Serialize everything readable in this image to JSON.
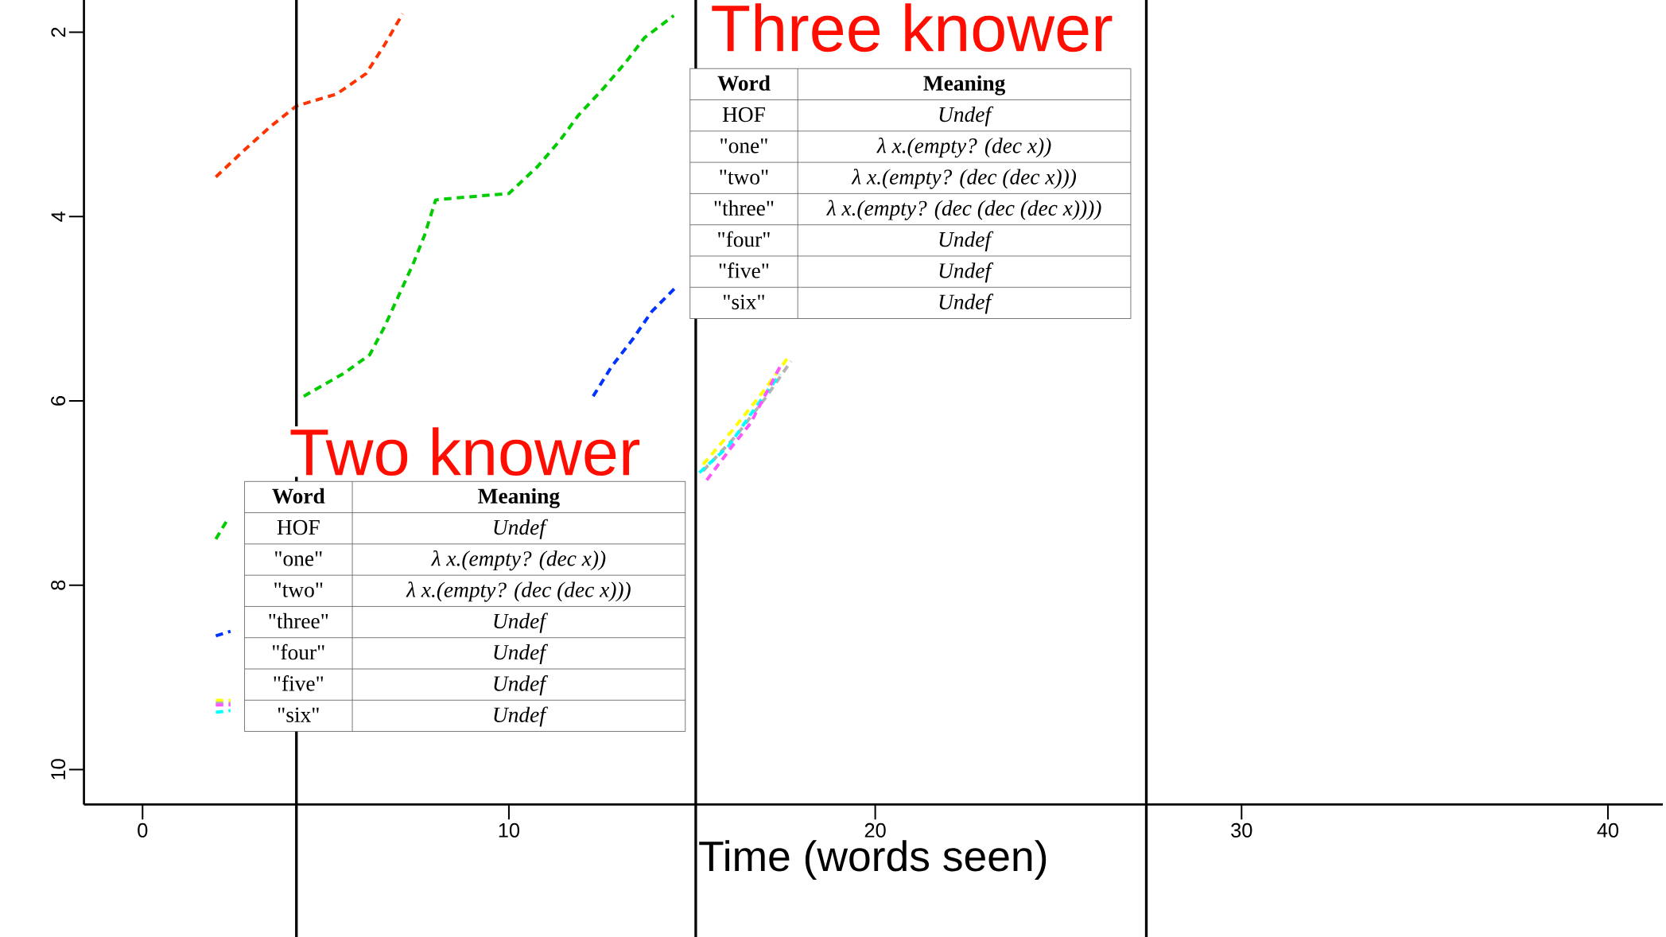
{
  "chart_data": {
    "type": "line",
    "xlabel": "Time (words seen)",
    "xlim": [
      -1.6,
      41.5
    ],
    "xticks": [
      0,
      10,
      20,
      30,
      40
    ],
    "ylim": [
      10.38,
      1.65
    ],
    "yticks": [
      2,
      4,
      6,
      8,
      10
    ],
    "marker": "none",
    "line_style": "dashed",
    "series": [
      {
        "color": "#ff3300",
        "x": [
          2.0,
          2.8,
          3.5,
          4.2,
          5.3,
          6.1,
          6.6,
          7.1
        ],
        "values": [
          3.57,
          3.27,
          3.02,
          2.8,
          2.67,
          2.45,
          2.14,
          1.8
        ]
      },
      {
        "color": "#00cc00",
        "x": [
          2.0,
          2.3,
          3.0,
          4.4,
          5.5,
          6.2,
          6.6,
          7.0,
          7.4,
          7.7,
          8.0,
          8.5,
          10.0,
          10.8,
          11.4,
          11.9,
          12.6,
          13.2,
          13.7,
          14.5
        ],
        "values": [
          7.5,
          7.3,
          null,
          5.95,
          5.7,
          5.5,
          5.2,
          4.85,
          4.5,
          4.2,
          3.82,
          3.8,
          3.75,
          3.45,
          3.17,
          2.9,
          2.6,
          2.32,
          2.06,
          1.82
        ]
      },
      {
        "color": "#0033ff",
        "x": [
          2.0,
          2.4,
          3.0,
          12.3,
          12.8,
          13.4,
          13.9,
          14.6
        ],
        "values": [
          8.55,
          8.5,
          null,
          5.95,
          5.63,
          5.32,
          5.03,
          4.75
        ]
      },
      {
        "color": "#ffff00",
        "x": [
          2.0,
          2.4,
          3.0,
          15.3,
          16.1,
          16.9,
          17.6
        ],
        "values": [
          9.25,
          9.25,
          null,
          6.69,
          6.32,
          5.92,
          5.54
        ]
      },
      {
        "color": "#b3b3b3",
        "x": [
          2.0,
          2.4,
          3.0,
          15.3,
          16.2,
          17.0,
          17.7
        ],
        "values": [
          9.28,
          9.28,
          null,
          6.76,
          6.38,
          5.97,
          5.57
        ]
      },
      {
        "color": "#00ffff",
        "x": [
          2.0,
          2.4,
          3.0,
          15.2,
          16.0,
          16.7,
          17.4
        ],
        "values": [
          9.38,
          9.36,
          null,
          6.78,
          6.49,
          6.09,
          5.71
        ]
      },
      {
        "color": "#ff55ff",
        "x": [
          2.0,
          2.4,
          3.0,
          15.4,
          16.1,
          16.6,
          17.4
        ],
        "values": [
          9.3,
          9.3,
          null,
          6.86,
          6.49,
          6.24,
          5.63
        ]
      }
    ],
    "ref_lines": [
      {
        "axis": "x",
        "value": 4.2,
        "color": "#000000"
      },
      {
        "axis": "x",
        "value": 15.1,
        "color": "#000000"
      },
      {
        "axis": "x",
        "value": 27.4,
        "color": "#000000"
      }
    ],
    "annotations": [
      "Two knower",
      "Word",
      "Meaning",
      "HOF",
      "Undef",
      "\"one\"",
      "λ x.(empty? (dec x))",
      "\"two\"",
      "λ x.(empty? (dec (dec x)))",
      "\"three\"",
      "Undef",
      "\"four\"",
      "Undef",
      "\"five\"",
      "Undef",
      "\"six\"",
      "Undef",
      "Three knower",
      "Word",
      "Meaning",
      "HOF",
      "Undef",
      "\"one\"",
      "λ x.(empty? (dec x))",
      "\"two\"",
      "λ x.(empty? (dec (dec x)))",
      "\"three\"",
      "λ x.(empty? (dec (dec (dec x))))",
      "\"four\"",
      "Undef",
      "\"five\"",
      "Undef",
      "\"six\"",
      "Undef"
    ]
  }
}
